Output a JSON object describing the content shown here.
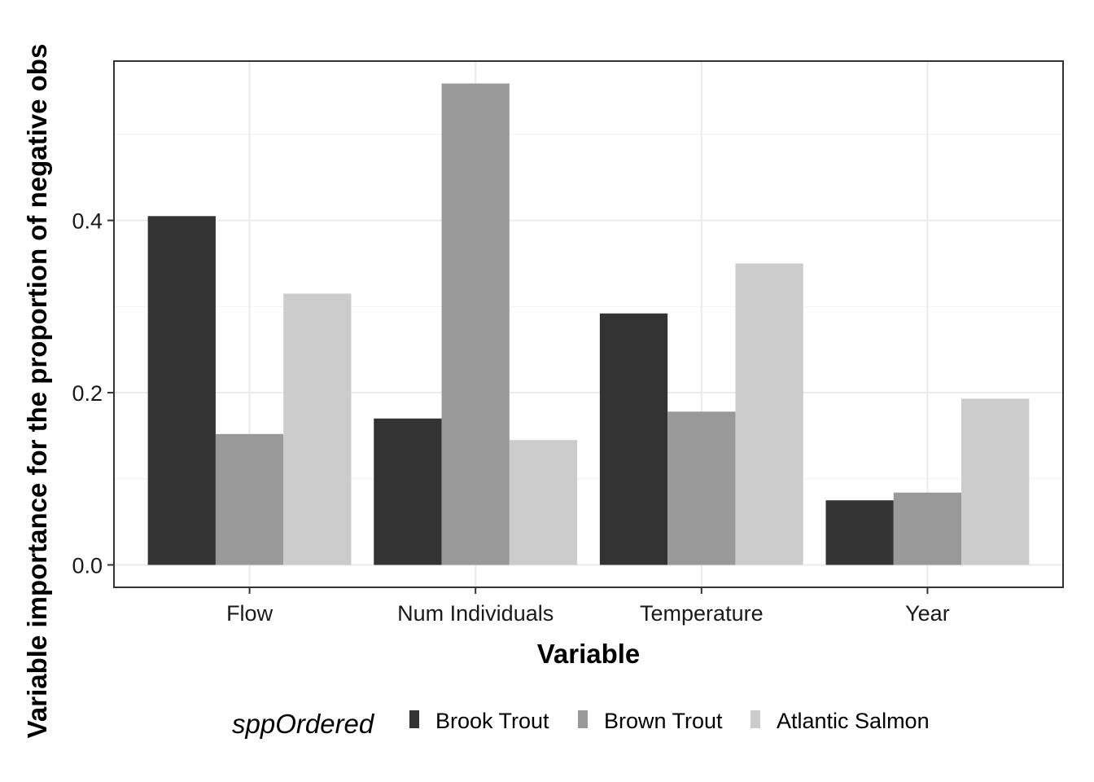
{
  "chart_data": {
    "type": "bar",
    "xlabel": "Variable",
    "ylabel": "Variable importance for the proportion of negative obs",
    "categories": [
      "Flow",
      "Num Individuals",
      "Temperature",
      "Year"
    ],
    "series": [
      {
        "name": "Brook Trout",
        "values": [
          0.405,
          0.17,
          0.292,
          0.075
        ],
        "color": "#333333"
      },
      {
        "name": "Brown Trout",
        "values": [
          0.152,
          0.559,
          0.178,
          0.084
        ],
        "color": "#999999"
      },
      {
        "name": "Atlantic Salmon",
        "values": [
          0.315,
          0.145,
          0.35,
          0.193
        ],
        "color": "#cccccc"
      }
    ],
    "ylim": [
      -0.026,
      0.585
    ],
    "yticks": [
      0.0,
      0.2,
      0.4
    ],
    "ytick_labels": [
      "0.0",
      "0.2",
      "0.4"
    ],
    "grid": true,
    "legend": {
      "title": "sppOrdered",
      "position": "bottom"
    }
  }
}
